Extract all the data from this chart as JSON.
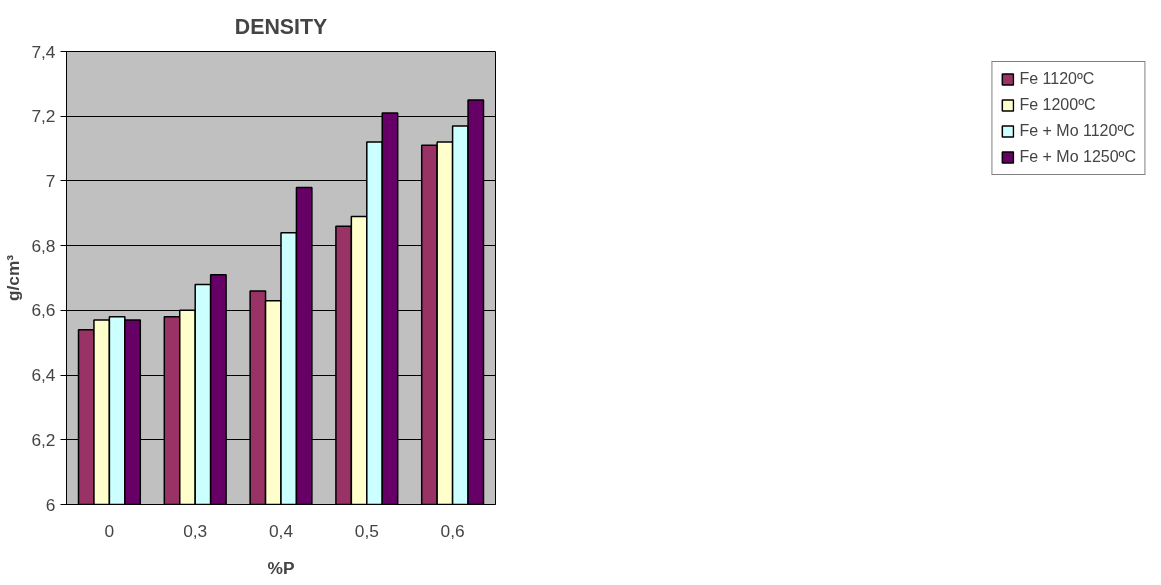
{
  "chart_data": {
    "type": "bar",
    "title": "DENSITY",
    "xlabel": "%P",
    "ylabel": "g/cm³",
    "categories": [
      "0",
      "0,3",
      "0,4",
      "0,5",
      "0,6"
    ],
    "series": [
      {
        "name": "Fe 1120ºC",
        "color": "#993366",
        "values": [
          6.54,
          6.58,
          6.66,
          6.86,
          7.11
        ]
      },
      {
        "name": "Fe 1200ºC",
        "color": "#ffffcc",
        "values": [
          6.57,
          6.6,
          6.63,
          6.89,
          7.12
        ]
      },
      {
        "name": "Fe + Mo 1120ºC",
        "color": "#ccffff",
        "values": [
          6.58,
          6.68,
          6.84,
          7.12,
          7.17
        ]
      },
      {
        "name": "Fe + Mo 1250ºC",
        "color": "#660066",
        "values": [
          6.57,
          6.71,
          6.98,
          7.21,
          7.25
        ]
      }
    ],
    "ylim": [
      6,
      7.4
    ],
    "yticks": [
      6,
      {
        "value": 6.2,
        "label": "6,2"
      },
      {
        "value": 6.4,
        "label": "6,4"
      },
      {
        "value": 6.6,
        "label": "6,6"
      },
      {
        "value": 6.8,
        "label": "6,8"
      },
      7,
      {
        "value": 7.2,
        "label": "7,2"
      },
      {
        "value": 7.4,
        "label": "7,4"
      }
    ],
    "grid": "y",
    "legend": "right"
  }
}
